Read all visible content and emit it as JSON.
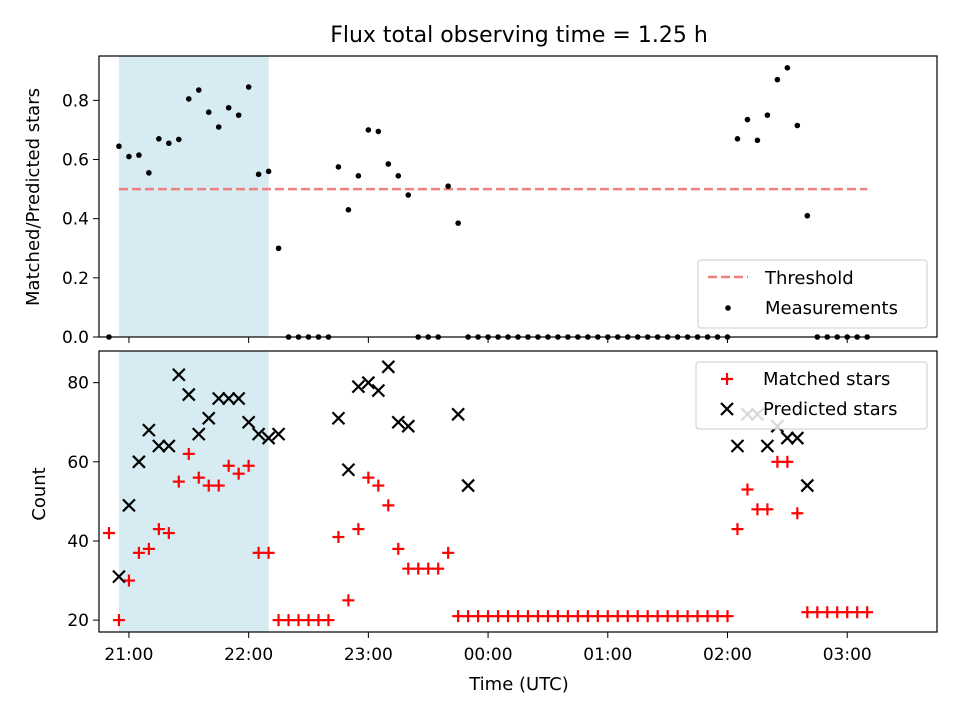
{
  "chart_data": [
    {
      "type": "scatter",
      "title": "Flux total observing time = 1.25 h",
      "ylabel": "Matched/Predicted stars",
      "xlabel": "",
      "ylim": [
        0,
        0.95
      ],
      "yticks": [
        0.0,
        0.2,
        0.4,
        0.6,
        0.8
      ],
      "ytick_labels": [
        "0.0",
        "0.2",
        "0.4",
        "0.6",
        "0.8"
      ],
      "xlim": [
        "20:45",
        "03:45"
      ],
      "shaded_interval": [
        "20:55",
        "22:10"
      ],
      "shade_color": "#add8e6",
      "legend_position": "lower right",
      "threshold": {
        "name": "Threshold",
        "value": 0.5,
        "x_range": [
          "20:55",
          "03:10"
        ],
        "color": "#f08080",
        "style": "dashed"
      },
      "series": [
        {
          "name": "Measurements",
          "color": "#000000",
          "marker": "dot",
          "x": [
            "20:50",
            "20:55",
            "21:00",
            "21:05",
            "21:10",
            "21:15",
            "21:20",
            "21:25",
            "21:30",
            "21:35",
            "21:40",
            "21:45",
            "21:50",
            "21:55",
            "22:00",
            "22:05",
            "22:10",
            "22:15",
            "22:20",
            "22:25",
            "22:30",
            "22:35",
            "22:40",
            "22:45",
            "22:50",
            "22:55",
            "23:00",
            "23:05",
            "23:10",
            "23:15",
            "23:20",
            "23:25",
            "23:30",
            "23:35",
            "23:40",
            "23:45",
            "23:50",
            "23:55",
            "00:00",
            "00:05",
            "00:10",
            "00:15",
            "00:20",
            "00:25",
            "00:30",
            "00:35",
            "00:40",
            "00:45",
            "00:50",
            "00:55",
            "01:00",
            "01:05",
            "01:10",
            "01:15",
            "01:20",
            "01:25",
            "01:30",
            "01:35",
            "01:40",
            "01:45",
            "01:50",
            "01:55",
            "02:00",
            "02:05",
            "02:10",
            "02:15",
            "02:20",
            "02:25",
            "02:30",
            "02:35",
            "02:40",
            "02:45",
            "02:50",
            "02:55",
            "03:00",
            "03:05",
            "03:10"
          ],
          "y": [
            0.0,
            0.645,
            0.61,
            0.615,
            0.555,
            0.67,
            0.655,
            0.668,
            0.805,
            0.835,
            0.76,
            0.71,
            0.775,
            0.75,
            0.845,
            0.55,
            0.56,
            0.3,
            0.0,
            0.0,
            0.0,
            0.0,
            0.0,
            0.575,
            0.43,
            0.545,
            0.7,
            0.695,
            0.585,
            0.545,
            0.48,
            0.0,
            0.0,
            0.0,
            0.51,
            0.385,
            0.0,
            0.0,
            0.0,
            0.0,
            0.0,
            0.0,
            0.0,
            0.0,
            0.0,
            0.0,
            0.0,
            0.0,
            0.0,
            0.0,
            0.0,
            0.0,
            0.0,
            0.0,
            0.0,
            0.0,
            0.0,
            0.0,
            0.0,
            0.0,
            0.0,
            0.0,
            0.0,
            0.67,
            0.735,
            0.665,
            0.75,
            0.87,
            0.91,
            0.715,
            0.41,
            0.0,
            0.0,
            0.0,
            0.0,
            0.0,
            0.0
          ]
        }
      ]
    },
    {
      "type": "scatter",
      "title": "",
      "ylabel": "Count",
      "xlabel": "Time (UTC)",
      "ylim": [
        17,
        88
      ],
      "yticks": [
        20,
        40,
        60,
        80
      ],
      "ytick_labels": [
        "20",
        "40",
        "60",
        "80"
      ],
      "xlim": [
        "20:45",
        "03:45"
      ],
      "xticks": [
        "21:00",
        "22:00",
        "23:00",
        "00:00",
        "01:00",
        "02:00",
        "03:00"
      ],
      "xtick_labels": [
        "21:00",
        "22:00",
        "23:00",
        "00:00",
        "01:00",
        "02:00",
        "03:00"
      ],
      "shaded_interval": [
        "20:55",
        "22:10"
      ],
      "shade_color": "#add8e6",
      "legend_position": "upper right",
      "series": [
        {
          "name": "Matched stars",
          "color": "#ff0000",
          "marker": "plus",
          "x": [
            "20:50",
            "20:55",
            "21:00",
            "21:05",
            "21:10",
            "21:15",
            "21:20",
            "21:25",
            "21:30",
            "21:35",
            "21:40",
            "21:45",
            "21:50",
            "21:55",
            "22:00",
            "22:05",
            "22:10",
            "22:15",
            "22:20",
            "22:25",
            "22:30",
            "22:35",
            "22:40",
            "22:45",
            "22:50",
            "22:55",
            "23:00",
            "23:05",
            "23:10",
            "23:15",
            "23:20",
            "23:25",
            "23:30",
            "23:35",
            "23:40",
            "23:45",
            "23:50",
            "23:55",
            "00:00",
            "00:05",
            "00:10",
            "00:15",
            "00:20",
            "00:25",
            "00:30",
            "00:35",
            "00:40",
            "00:45",
            "00:50",
            "00:55",
            "01:00",
            "01:05",
            "01:10",
            "01:15",
            "01:20",
            "01:25",
            "01:30",
            "01:35",
            "01:40",
            "01:45",
            "01:50",
            "01:55",
            "02:00",
            "02:05",
            "02:10",
            "02:15",
            "02:20",
            "02:25",
            "02:30",
            "02:35",
            "02:40",
            "02:45",
            "02:50",
            "02:55",
            "03:00",
            "03:05",
            "03:10"
          ],
          "y": [
            42,
            20,
            30,
            37,
            38,
            43,
            42,
            55,
            62,
            56,
            54,
            54,
            59,
            57,
            59,
            37,
            37,
            20,
            20,
            20,
            20,
            20,
            20,
            41,
            25,
            43,
            56,
            54,
            49,
            38,
            33,
            33,
            33,
            33,
            37,
            21,
            21,
            21,
            21,
            21,
            21,
            21,
            21,
            21,
            21,
            21,
            21,
            21,
            21,
            21,
            21,
            21,
            21,
            21,
            21,
            21,
            21,
            21,
            21,
            21,
            21,
            21,
            21,
            43,
            53,
            48,
            48,
            60,
            60,
            47,
            22,
            22,
            22,
            22,
            22,
            22,
            22
          ]
        },
        {
          "name": "Predicted stars",
          "color": "#000000",
          "marker": "x",
          "x": [
            "20:55",
            "21:00",
            "21:05",
            "21:10",
            "21:15",
            "21:20",
            "21:25",
            "21:30",
            "21:35",
            "21:40",
            "21:45",
            "21:50",
            "21:55",
            "22:00",
            "22:05",
            "22:10",
            "22:15",
            "22:45",
            "22:50",
            "22:55",
            "23:00",
            "23:05",
            "23:10",
            "23:15",
            "23:20",
            "23:45",
            "23:50",
            "02:05",
            "02:10",
            "02:15",
            "02:20",
            "02:25",
            "02:30",
            "02:35",
            "02:40"
          ],
          "y": [
            31,
            49,
            60,
            68,
            64,
            64,
            82,
            77,
            67,
            71,
            76,
            76,
            76,
            70,
            67,
            66,
            67,
            71,
            58,
            79,
            80,
            78,
            84,
            70,
            69,
            72,
            54,
            64,
            72,
            72,
            64,
            69,
            66,
            66,
            54
          ]
        }
      ]
    }
  ]
}
